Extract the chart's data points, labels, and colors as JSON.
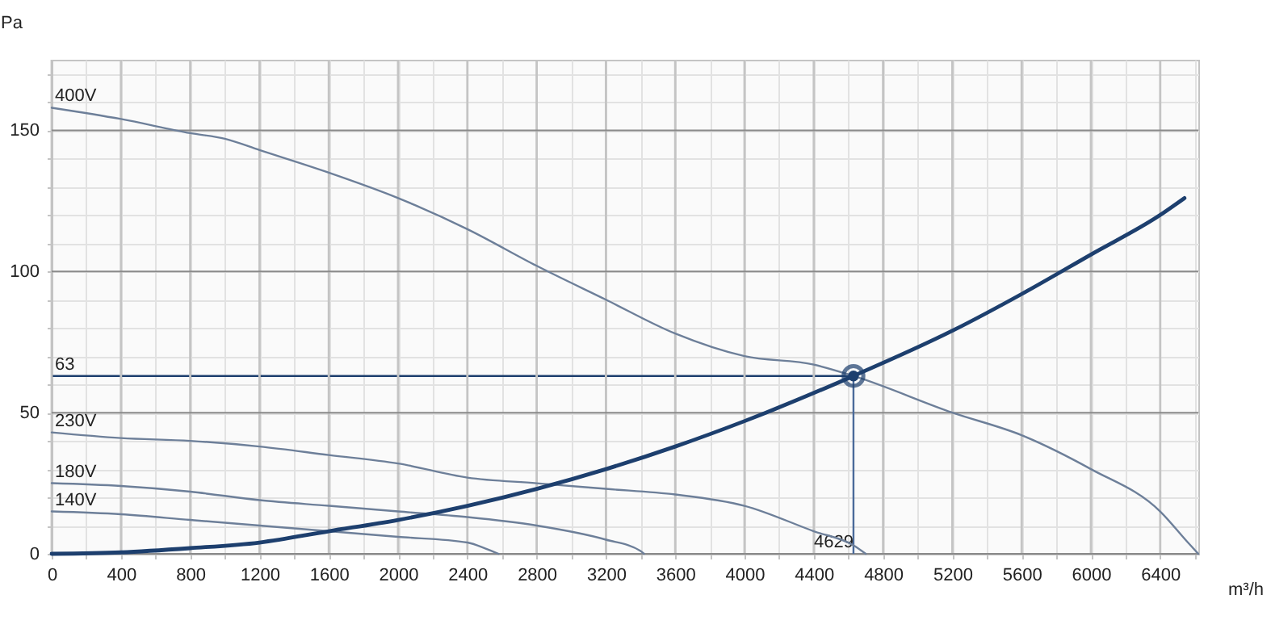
{
  "chart_data": {
    "type": "line",
    "xlabel": "m³/h",
    "ylabel": "Pa",
    "xlim": [
      0,
      6620
    ],
    "ylim": [
      0,
      175
    ],
    "xticks": [
      0,
      {
        "value": 200,
        "label": null
      },
      400,
      {
        "value": 600,
        "label": null
      },
      800,
      {
        "value": 1000,
        "label": null
      },
      1200,
      {
        "value": 1400,
        "label": null
      },
      1600,
      {
        "value": 1800,
        "label": null
      },
      2000,
      {
        "value": 2200,
        "label": null
      },
      2400,
      {
        "value": 2600,
        "label": null
      },
      2800,
      {
        "value": 3000,
        "label": null
      },
      3200,
      {
        "value": 3400,
        "label": null
      },
      3600,
      {
        "value": 3800,
        "label": null
      },
      4000,
      {
        "value": 4200,
        "label": null
      },
      4400,
      {
        "value": 4600,
        "label": null
      },
      4800,
      {
        "value": 5000,
        "label": null
      },
      5200,
      {
        "value": 5400,
        "label": null
      },
      5600,
      {
        "value": 5800,
        "label": null
      },
      6000,
      {
        "value": 6200,
        "label": null
      },
      6400,
      {
        "value": 6600,
        "label": null
      }
    ],
    "yticks": [
      0,
      {
        "value": 10,
        "label": null
      },
      {
        "value": 20,
        "label": null
      },
      {
        "value": 30,
        "label": null
      },
      {
        "value": 40,
        "label": null
      },
      50,
      {
        "value": 60,
        "label": null
      },
      {
        "value": 70,
        "label": null
      },
      {
        "value": 80,
        "label": null
      },
      {
        "value": 90,
        "label": null
      },
      100,
      {
        "value": 110,
        "label": null
      },
      {
        "value": 120,
        "label": null
      },
      {
        "value": 130,
        "label": null
      },
      {
        "value": 140,
        "label": null
      },
      150,
      {
        "value": 160,
        "label": null
      },
      {
        "value": 170,
        "label": null
      }
    ],
    "grid": true,
    "line_style": "solid",
    "series": [
      {
        "name": "400V",
        "color": "#6d7f99",
        "x": [
          0,
          400,
          800,
          1000,
          1200,
          1600,
          2000,
          2400,
          2800,
          3200,
          3600,
          4000,
          4400,
          4629,
          5200,
          5600,
          6000,
          6400,
          6560,
          6620
        ],
        "values": [
          158,
          154,
          149,
          147,
          143,
          135,
          126,
          115,
          102,
          90,
          78,
          70,
          67,
          63,
          50,
          42,
          30,
          15,
          4,
          0
        ]
      },
      {
        "name": "230V",
        "color": "#6d7f99",
        "x": [
          0,
          400,
          800,
          1200,
          1600,
          2000,
          2400,
          2800,
          3200,
          3600,
          4000,
          4400,
          4629,
          4700
        ],
        "values": [
          43,
          41,
          40,
          38,
          35,
          32,
          27,
          25,
          23,
          21,
          17,
          8,
          3,
          0
        ]
      },
      {
        "name": "180V",
        "color": "#6d7f99",
        "x": [
          0,
          400,
          800,
          1200,
          1600,
          2000,
          2400,
          2800,
          3200,
          3400,
          3420
        ],
        "values": [
          25,
          24,
          22,
          19,
          17,
          15,
          13,
          10,
          5,
          1,
          0
        ]
      },
      {
        "name": "140V",
        "color": "#6d7f99",
        "x": [
          0,
          400,
          800,
          1200,
          1600,
          2000,
          2400,
          2500,
          2580
        ],
        "values": [
          15,
          14,
          12,
          10,
          8,
          6,
          4,
          2,
          0
        ]
      },
      {
        "color": "#1d3f6e",
        "x": [
          0,
          400,
          800,
          1200,
          1600,
          2000,
          2400,
          2800,
          3200,
          3600,
          4000,
          4629,
          5200,
          5600,
          6000,
          6400,
          6540
        ],
        "values": [
          0,
          0.5,
          2,
          4,
          8,
          12,
          17,
          23,
          30,
          38,
          47,
          63,
          79,
          92,
          106,
          120,
          126
        ]
      },
      {
        "type": "scatter",
        "marker": "circle",
        "color": "#1d3f6e",
        "x": [
          4629
        ],
        "values": [
          63
        ]
      }
    ],
    "ref_lines": [
      {
        "axis": "y",
        "value": 63,
        "label": "63",
        "color": "#1d3f6e"
      },
      {
        "axis": "x",
        "value": 4629,
        "label": "4629",
        "color": "#4a6a9a"
      }
    ]
  }
}
